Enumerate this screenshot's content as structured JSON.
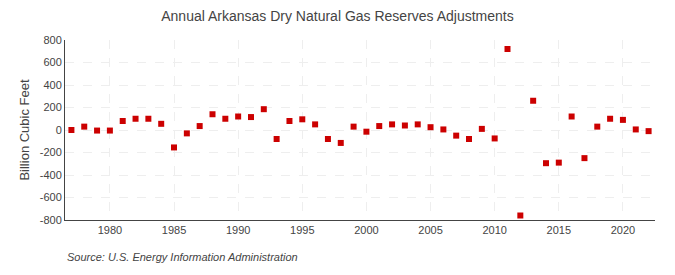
{
  "chart_data": {
    "type": "scatter",
    "title": "Annual Arkansas Dry Natural Gas Reserves Adjustments",
    "ylabel": "Billion Cubic Feet",
    "annotations": [
      "Source: U.S. Energy Information Administration"
    ],
    "x": [
      1977,
      1978,
      1979,
      1980,
      1981,
      1982,
      1983,
      1984,
      1985,
      1986,
      1987,
      1988,
      1989,
      1990,
      1991,
      1992,
      1993,
      1994,
      1995,
      1996,
      1997,
      1998,
      1999,
      2000,
      2001,
      2002,
      2003,
      2004,
      2005,
      2006,
      2007,
      2008,
      2009,
      2010,
      2011,
      2012,
      2013,
      2014,
      2015,
      2016,
      2017,
      2018,
      2019,
      2020,
      2021,
      2022
    ],
    "values": [
      0,
      30,
      -5,
      -5,
      80,
      100,
      100,
      55,
      -155,
      -30,
      35,
      140,
      100,
      120,
      115,
      185,
      -80,
      80,
      95,
      50,
      -80,
      -115,
      30,
      -15,
      35,
      50,
      40,
      50,
      25,
      5,
      -50,
      -80,
      10,
      -75,
      720,
      -760,
      260,
      -295,
      -290,
      120,
      -250,
      30,
      100,
      90,
      5,
      -10
    ],
    "color": "#cc0000",
    "marker": "square",
    "xlim": [
      1976.5,
      2022.5
    ],
    "xticks": [
      1980,
      1985,
      1990,
      1995,
      2000,
      2005,
      2010,
      2015,
      2020
    ],
    "ylim": [
      -800,
      800
    ],
    "yticks": [
      -800,
      -600,
      -400,
      -200,
      0,
      200,
      400,
      600,
      800
    ],
    "grid": true
  }
}
